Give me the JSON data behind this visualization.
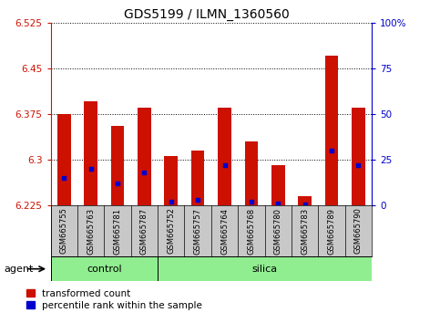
{
  "title": "GDS5199 / ILMN_1360560",
  "samples": [
    "GSM665755",
    "GSM665763",
    "GSM665781",
    "GSM665787",
    "GSM665752",
    "GSM665757",
    "GSM665764",
    "GSM665768",
    "GSM665780",
    "GSM665783",
    "GSM665789",
    "GSM665790"
  ],
  "groups": [
    "control",
    "control",
    "control",
    "control",
    "silica",
    "silica",
    "silica",
    "silica",
    "silica",
    "silica",
    "silica",
    "silica"
  ],
  "bar_values": [
    6.375,
    6.395,
    6.355,
    6.385,
    6.305,
    6.315,
    6.385,
    6.33,
    6.29,
    6.24,
    6.47,
    6.385
  ],
  "percentile_ranks": [
    15,
    20,
    12,
    18,
    2,
    3,
    22,
    2,
    1,
    0.5,
    30,
    22
  ],
  "ylim_left": [
    6.225,
    6.525
  ],
  "ylim_right": [
    0,
    100
  ],
  "yticks_left": [
    6.225,
    6.3,
    6.375,
    6.45,
    6.525
  ],
  "ytick_labels_left": [
    "6.225",
    "6.3",
    "6.375",
    "6.45",
    "6.525"
  ],
  "yticks_right": [
    0,
    25,
    50,
    75,
    100
  ],
  "ytick_labels_right": [
    "0",
    "25",
    "50",
    "75",
    "100%"
  ],
  "bar_color": "#cc1100",
  "dot_color": "#0000cc",
  "bar_width": 0.5,
  "grid_color": "black",
  "control_samples": 4,
  "silica_samples": 8,
  "legend_bar_label": "transformed count",
  "legend_dot_label": "percentile rank within the sample",
  "tick_color_left": "#cc1100",
  "tick_color_right": "#0000cc",
  "plot_bg_color": "#ffffff",
  "xtick_bg_color": "#c8c8c8"
}
